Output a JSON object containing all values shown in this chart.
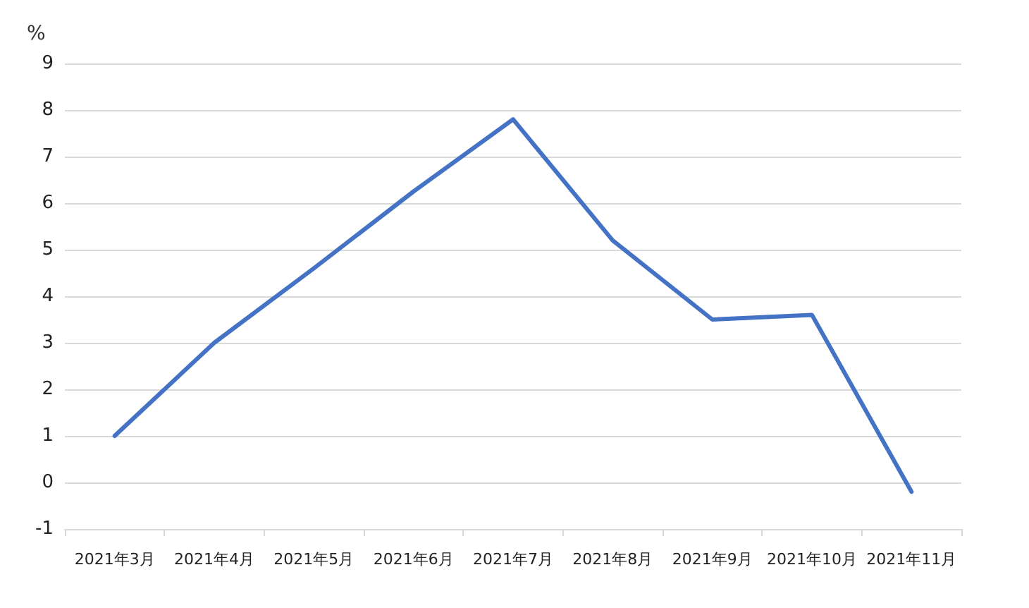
{
  "chart_data": {
    "type": "line",
    "ylabel": "%",
    "categories": [
      "2021年3月",
      "2021年4月",
      "2021年5月",
      "2021年6月",
      "2021年7月",
      "2021年8月",
      "2021年9月",
      "2021年10月",
      "2021年11月"
    ],
    "series": [
      {
        "color": "#4472c4",
        "values": [
          1.0,
          3.0,
          4.6,
          6.25,
          7.8,
          5.2,
          3.5,
          3.6,
          -0.2
        ]
      }
    ],
    "ylim": [
      -1,
      9
    ],
    "yticks": [
      -1,
      0,
      1,
      2,
      3,
      4,
      5,
      6,
      7,
      8,
      9
    ],
    "grid": "y",
    "marker": "none",
    "line_style": "solid"
  }
}
